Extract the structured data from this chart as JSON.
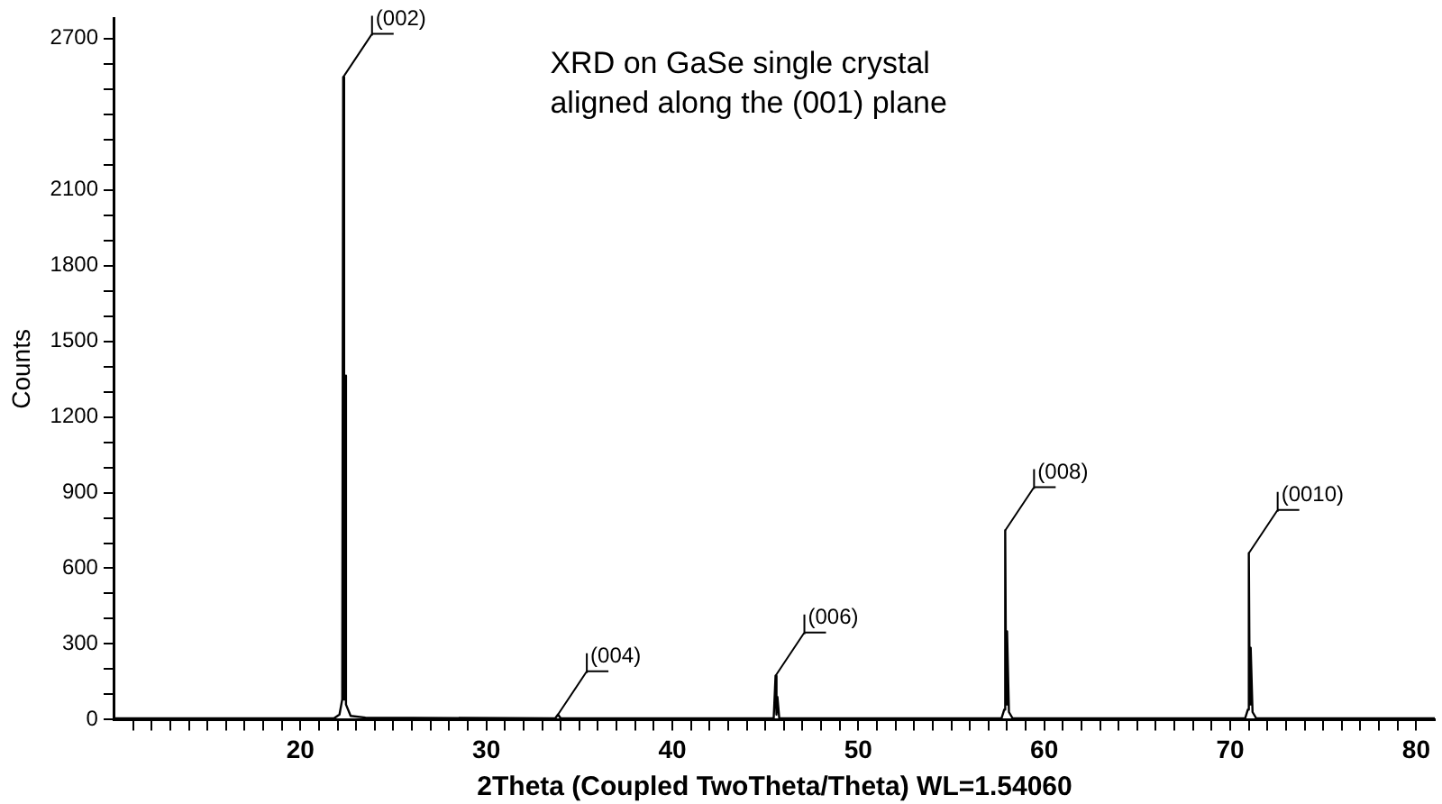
{
  "chart_data": {
    "type": "line",
    "title": "XRD on GaSe single crystal\naligned along the (001) plane",
    "xlabel": "2Theta (Coupled TwoTheta/Theta) WL=1.54060",
    "ylabel": "Counts",
    "x": [
      10,
      21.8,
      22.1,
      22.25,
      22.3,
      22.35,
      22.4,
      22.45,
      22.7,
      23.5,
      33.7,
      33.85,
      34.0,
      45.45,
      45.55,
      45.6,
      45.65,
      45.75,
      57.7,
      57.85,
      57.9,
      57.95,
      58.0,
      58.1,
      58.3,
      70.8,
      70.95,
      71.0,
      71.05,
      71.1,
      71.2,
      71.4,
      81
    ],
    "series": [
      {
        "color": "#000000",
        "values": [
          5,
          5,
          20,
          80,
          2547,
          80,
          1364,
          60,
          15,
          8,
          5,
          20,
          5,
          5,
          174,
          20,
          90,
          5,
          5,
          40,
          750,
          60,
          350,
          30,
          5,
          5,
          40,
          660,
          60,
          285,
          30,
          5,
          5
        ]
      }
    ],
    "xlim": [
      10,
      81
    ],
    "xticks": [
      {
        "value": 11,
        "label": null
      },
      {
        "value": 12,
        "label": null
      },
      {
        "value": 13,
        "label": null
      },
      {
        "value": 14,
        "label": null
      },
      {
        "value": 15,
        "label": null
      },
      {
        "value": 16,
        "label": null
      },
      {
        "value": 17,
        "label": null
      },
      {
        "value": 18,
        "label": null
      },
      {
        "value": 19,
        "label": null
      },
      20,
      {
        "value": 21,
        "label": null
      },
      {
        "value": 22,
        "label": null
      },
      {
        "value": 23,
        "label": null
      },
      {
        "value": 24,
        "label": null
      },
      {
        "value": 25,
        "label": null
      },
      {
        "value": 26,
        "label": null
      },
      {
        "value": 27,
        "label": null
      },
      {
        "value": 28,
        "label": null
      },
      {
        "value": 29,
        "label": null
      },
      30,
      {
        "value": 31,
        "label": null
      },
      {
        "value": 32,
        "label": null
      },
      {
        "value": 33,
        "label": null
      },
      {
        "value": 34,
        "label": null
      },
      {
        "value": 35,
        "label": null
      },
      {
        "value": 36,
        "label": null
      },
      {
        "value": 37,
        "label": null
      },
      {
        "value": 38,
        "label": null
      },
      {
        "value": 39,
        "label": null
      },
      40,
      {
        "value": 41,
        "label": null
      },
      {
        "value": 42,
        "label": null
      },
      {
        "value": 43,
        "label": null
      },
      {
        "value": 44,
        "label": null
      },
      {
        "value": 45,
        "label": null
      },
      {
        "value": 46,
        "label": null
      },
      {
        "value": 47,
        "label": null
      },
      {
        "value": 48,
        "label": null
      },
      {
        "value": 49,
        "label": null
      },
      50,
      {
        "value": 51,
        "label": null
      },
      {
        "value": 52,
        "label": null
      },
      {
        "value": 53,
        "label": null
      },
      {
        "value": 54,
        "label": null
      },
      {
        "value": 55,
        "label": null
      },
      {
        "value": 56,
        "label": null
      },
      {
        "value": 57,
        "label": null
      },
      {
        "value": 58,
        "label": null
      },
      {
        "value": 59,
        "label": null
      },
      60,
      {
        "value": 61,
        "label": null
      },
      {
        "value": 62,
        "label": null
      },
      {
        "value": 63,
        "label": null
      },
      {
        "value": 64,
        "label": null
      },
      {
        "value": 65,
        "label": null
      },
      {
        "value": 66,
        "label": null
      },
      {
        "value": 67,
        "label": null
      },
      {
        "value": 68,
        "label": null
      },
      {
        "value": 69,
        "label": null
      },
      70,
      {
        "value": 71,
        "label": null
      },
      {
        "value": 72,
        "label": null
      },
      {
        "value": 73,
        "label": null
      },
      {
        "value": 74,
        "label": null
      },
      {
        "value": 75,
        "label": null
      },
      {
        "value": 76,
        "label": null
      },
      {
        "value": 77,
        "label": null
      },
      {
        "value": 78,
        "label": null
      },
      {
        "value": 79,
        "label": null
      },
      80
    ],
    "ylim": [
      0,
      2780
    ],
    "yticks": [
      0,
      {
        "value": 100,
        "label": null
      },
      {
        "value": 200,
        "label": null
      },
      300,
      {
        "value": 400,
        "label": null
      },
      {
        "value": 500,
        "label": null
      },
      600,
      {
        "value": 700,
        "label": null
      },
      {
        "value": 800,
        "label": null
      },
      900,
      {
        "value": 1000,
        "label": null
      },
      {
        "value": 1100,
        "label": null
      },
      1200,
      {
        "value": 1300,
        "label": null
      },
      {
        "value": 1400,
        "label": null
      },
      1500,
      {
        "value": 1600,
        "label": null
      },
      {
        "value": 1700,
        "label": null
      },
      1800,
      {
        "value": 1900,
        "label": null
      },
      {
        "value": 2000,
        "label": null
      },
      2100,
      {
        "value": 2200,
        "label": null
      },
      {
        "value": 2300,
        "label": null
      },
      {
        "value": 2400,
        "label": null
      },
      {
        "value": 2500,
        "label": null
      },
      {
        "value": 2600,
        "label": null
      },
      2700
    ],
    "annotations": [
      {
        "text": "(002)",
        "x": 22.3,
        "y": 2547
      },
      {
        "text": "(004)",
        "x": 33.85,
        "y": 20
      },
      {
        "text": "(006)",
        "x": 45.55,
        "y": 174
      },
      {
        "text": "(008)",
        "x": 57.9,
        "y": 750
      },
      {
        "text": "(0010)",
        "x": 71.0,
        "y": 660
      }
    ],
    "grid": false,
    "legend": false,
    "marker": "none",
    "line_style": "solid"
  }
}
